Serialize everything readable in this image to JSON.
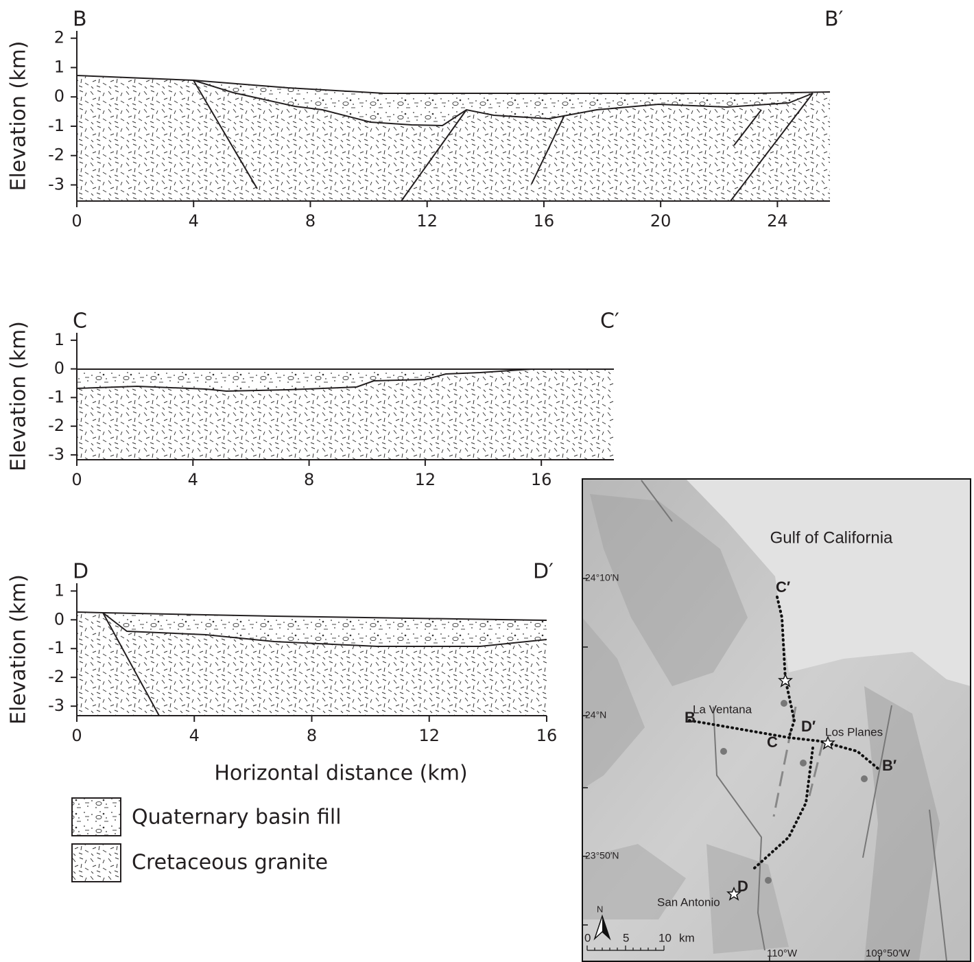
{
  "panels": [
    {
      "left_label": "B",
      "right_label": "B′",
      "y_label": "Elevation (km)",
      "xlim": [
        0,
        25.8
      ],
      "ylim": [
        -3.55,
        2.25
      ],
      "xticks": [
        0,
        4,
        8,
        12,
        16,
        20,
        24
      ],
      "yticks": [
        2,
        1,
        0,
        -1,
        -2,
        -3
      ]
    },
    {
      "left_label": "C",
      "right_label": "C′",
      "y_label": "Elevation (km)",
      "xlim": [
        0,
        18.5
      ],
      "ylim": [
        -3.17,
        1.26
      ],
      "xticks": [
        0,
        4,
        8,
        12,
        16
      ],
      "yticks": [
        1,
        0,
        -1,
        -2,
        -3
      ]
    },
    {
      "left_label": "D",
      "right_label": "D′",
      "y_label": "Elevation (km)",
      "xlim": [
        0,
        16
      ],
      "ylim": [
        -3.33,
        1.27
      ],
      "xticks": [
        0,
        4,
        8,
        12,
        16
      ],
      "yticks": [
        1,
        0,
        -1,
        -2,
        -3
      ]
    }
  ],
  "x_label": "Horizontal distance (km)",
  "legend": [
    "Quaternary basin fill",
    "Cretaceous granite"
  ],
  "map": {
    "title": "Gulf of California",
    "lat_labels": [
      "24°10′N",
      "24°N",
      "23°50′N"
    ],
    "lon_labels": [
      "110°W",
      "109°50′W"
    ],
    "places": [
      "La Ventana",
      "Los Planes",
      "San Antonio"
    ],
    "section_labels": [
      "B",
      "B′",
      "C",
      "C′",
      "D",
      "D′"
    ],
    "north": "N",
    "scale": [
      "0",
      "5",
      "10",
      "km"
    ]
  }
}
